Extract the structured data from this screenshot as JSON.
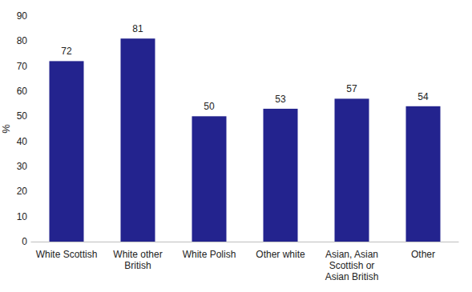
{
  "chart_data": {
    "type": "bar",
    "y_label": "%",
    "categories": [
      "White Scottish",
      "White other British",
      "White Polish",
      "Other white",
      "Asian, Asian Scottish or Asian British",
      "Other"
    ],
    "values": [
      72,
      81,
      50,
      53,
      57,
      54
    ],
    "color": "#23238e",
    "ylim": [
      0,
      90
    ],
    "yticks": [
      0,
      10,
      20,
      30,
      40,
      50,
      60,
      70,
      80,
      90
    ],
    "grid": false,
    "data_labels": true
  }
}
